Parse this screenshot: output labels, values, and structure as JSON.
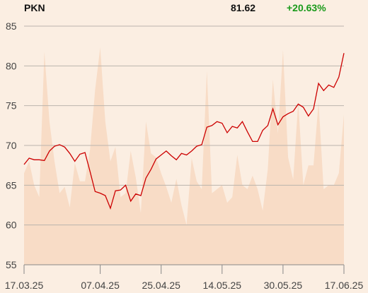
{
  "header": {
    "ticker": "PKN",
    "last_price": "81.62",
    "change": "+20.63%"
  },
  "colors": {
    "background": "#fbeee2",
    "price_line": "#cc0000",
    "volume_area": "#f8dcc6",
    "gridline": "#bbb4ad",
    "change_positive": "#1a9a1a"
  },
  "chart_data": {
    "type": "line",
    "title": "",
    "xlabel": "",
    "ylabel": "",
    "ylim": [
      55,
      85
    ],
    "y_ticks": [
      55,
      60,
      65,
      70,
      75,
      80,
      85
    ],
    "x_ticks": [
      "17.03.25",
      "07.04.25",
      "25.04.25",
      "14.05.25",
      "30.05.25",
      "17.06.25"
    ],
    "x_tick_index": [
      0,
      15,
      27,
      39,
      51,
      63
    ],
    "grid": true,
    "series": [
      {
        "kind": "line",
        "values": [
          67.6,
          68.4,
          68.2,
          68.2,
          68.1,
          69.3,
          69.9,
          70.1,
          69.8,
          69.0,
          68.0,
          68.9,
          69.1,
          66.7,
          64.2,
          64.0,
          63.7,
          62.1,
          64.3,
          64.4,
          65.0,
          63.0,
          63.9,
          63.7,
          65.9,
          67.0,
          68.3,
          68.8,
          69.3,
          68.7,
          68.2,
          69.0,
          68.8,
          69.3,
          69.9,
          70.1,
          72.3,
          72.5,
          73.0,
          72.8,
          71.6,
          72.4,
          72.2,
          73.0,
          71.7,
          70.5,
          70.5,
          71.9,
          72.5,
          74.6,
          72.6,
          73.6,
          74.0,
          74.3,
          75.2,
          74.8,
          73.7,
          74.6,
          77.8,
          76.9,
          77.6,
          77.3,
          78.6,
          81.6
        ]
      },
      {
        "kind": "background-area",
        "values": [
          66.5,
          68.0,
          65.0,
          63.5,
          81.8,
          73.0,
          68.0,
          64.0,
          64.8,
          62.2,
          67.8,
          65.5,
          65.5,
          69.5,
          77.0,
          82.3,
          73.0,
          68.0,
          69.8,
          63.5,
          64.0,
          69.3,
          66.0,
          61.5,
          73.0,
          69.0,
          68.5,
          66.5,
          64.8,
          62.8,
          65.8,
          62.5,
          60.0,
          68.4,
          65.5,
          64.5,
          79.4,
          64.0,
          64.5,
          65.0,
          62.8,
          63.5,
          68.8,
          65.0,
          64.5,
          66.2,
          64.5,
          61.8,
          67.0,
          78.3,
          71.5,
          82.0,
          68.5,
          65.7,
          75.5,
          65.0,
          67.5,
          67.5,
          75.5,
          64.5,
          65.0,
          65.0,
          66.5,
          73.9
        ]
      }
    ]
  }
}
